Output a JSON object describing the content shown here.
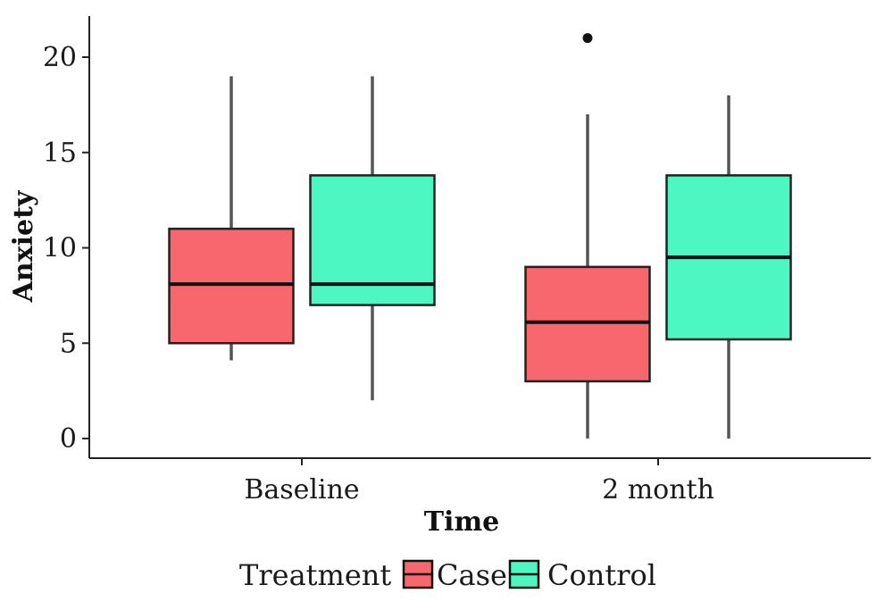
{
  "chart_data": {
    "type": "box",
    "xlabel": "Time",
    "ylabel": "Anxiety",
    "categories": [
      "Baseline",
      "2 month"
    ],
    "ylim": [
      -1,
      22
    ],
    "yticks": [
      0,
      5,
      10,
      15,
      20
    ],
    "grid": false,
    "legend": {
      "title": "Treatment",
      "placement": "bottom",
      "entries": [
        "Case",
        "Control"
      ]
    },
    "series": [
      {
        "name": "Case",
        "color": "#F8666E",
        "boxes": [
          {
            "category": "Baseline",
            "min": 4.1,
            "q1": 5,
            "median": 8.1,
            "q3": 11,
            "max": 19,
            "outliers": []
          },
          {
            "category": "2 month",
            "min": 0,
            "q1": 3,
            "median": 6.1,
            "q3": 9,
            "max": 17,
            "outliers": [
              21
            ]
          }
        ]
      },
      {
        "name": "Control",
        "color": "#4DF7C2",
        "boxes": [
          {
            "category": "Baseline",
            "min": 2,
            "q1": 7,
            "median": 8.1,
            "q3": 13.8,
            "max": 19,
            "outliers": []
          },
          {
            "category": "2 month",
            "min": 0,
            "q1": 5.2,
            "median": 9.5,
            "q3": 13.8,
            "max": 18,
            "outliers": []
          }
        ]
      }
    ]
  }
}
